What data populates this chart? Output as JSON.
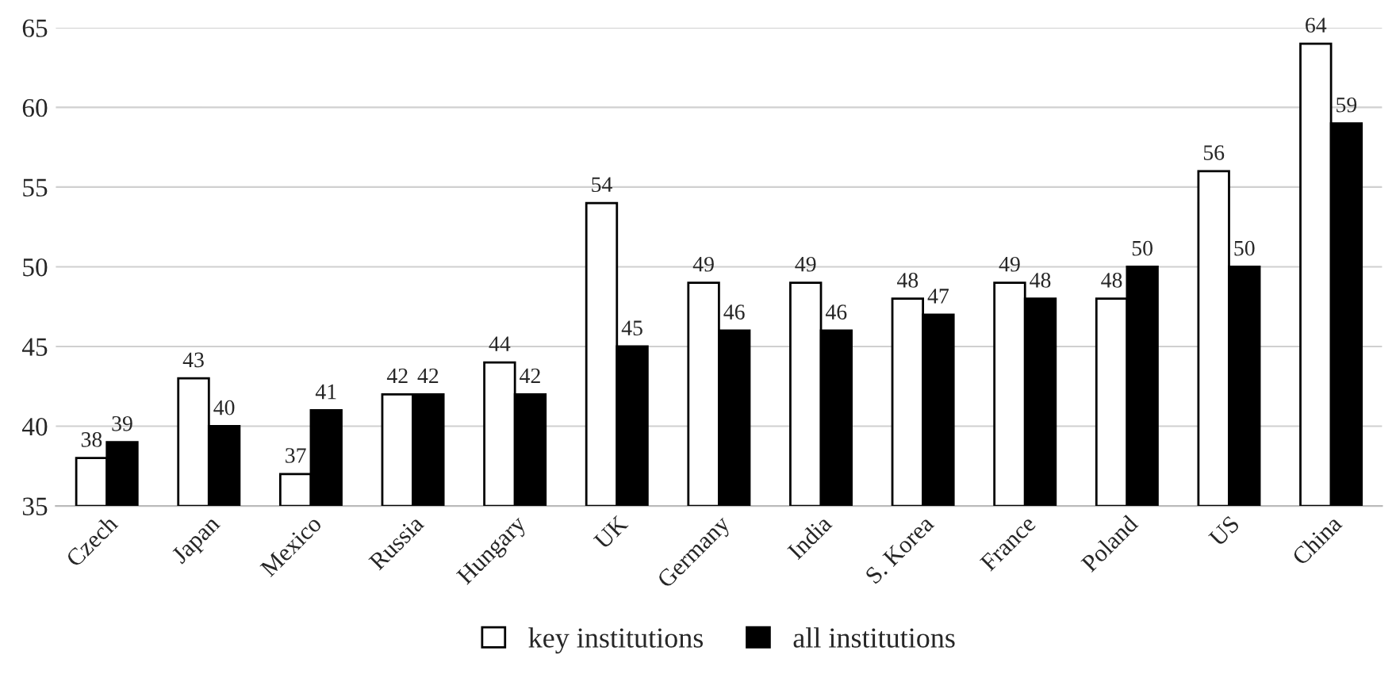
{
  "chart_data": {
    "type": "bar",
    "categories": [
      "Czech",
      "Japan",
      "Mexico",
      "Russia",
      "Hungary",
      "UK",
      "Germany",
      "India",
      "S. Korea",
      "France",
      "Poland",
      "US",
      "China"
    ],
    "series": [
      {
        "name": "key institutions",
        "color": "#ffffff",
        "values": [
          38,
          43,
          37,
          42,
          44,
          54,
          49,
          49,
          48,
          49,
          48,
          56,
          64
        ]
      },
      {
        "name": "all institutions",
        "color": "#000000",
        "values": [
          39,
          40,
          41,
          42,
          42,
          45,
          46,
          46,
          47,
          48,
          50,
          50,
          59
        ]
      }
    ],
    "ylim": [
      35,
      65
    ],
    "yticks": [
      35,
      40,
      45,
      50,
      55,
      60,
      65
    ],
    "grid": "y",
    "legend": "bottom",
    "data_labels": true
  }
}
